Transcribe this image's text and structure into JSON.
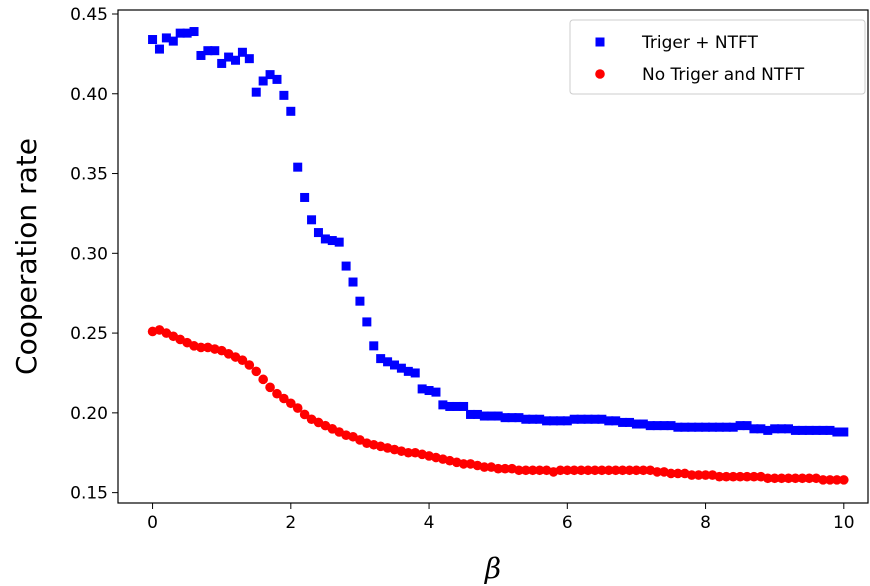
{
  "chart_data": {
    "type": "scatter",
    "xlabel": "β",
    "ylabel": "Cooperation rate",
    "xlim": [
      -0.5,
      10.35
    ],
    "ylim": [
      0.1435,
      0.4525
    ],
    "xticks": [
      0,
      2,
      4,
      6,
      8,
      10
    ],
    "yticks": [
      0.15,
      0.2,
      0.25,
      0.3,
      0.35,
      0.4,
      0.45
    ],
    "xtick_labels": [
      "0",
      "2",
      "4",
      "6",
      "8",
      "10"
    ],
    "ytick_labels": [
      "0.15",
      "0.20",
      "0.25",
      "0.30",
      "0.35",
      "0.40",
      "0.45"
    ],
    "grid": false,
    "legend_position": "top-right",
    "series": [
      {
        "name": "Triger + NTFT",
        "marker": "square",
        "color": "#0000ff",
        "x": [
          0.0,
          0.1,
          0.2,
          0.3,
          0.4,
          0.5,
          0.6,
          0.7,
          0.8,
          0.9,
          1.0,
          1.1,
          1.2,
          1.3,
          1.4,
          1.5,
          1.6,
          1.7,
          1.8,
          1.9,
          2.0,
          2.1,
          2.2,
          2.3,
          2.4,
          2.5,
          2.6,
          2.7,
          2.8,
          2.9,
          3.0,
          3.1,
          3.2,
          3.3,
          3.4,
          3.5,
          3.6,
          3.7,
          3.8,
          3.9,
          4.0,
          4.1,
          4.2,
          4.3,
          4.4,
          4.5,
          4.6,
          4.7,
          4.8,
          4.9,
          5.0,
          5.1,
          5.2,
          5.3,
          5.4,
          5.5,
          5.6,
          5.7,
          5.8,
          5.9,
          6.0,
          6.1,
          6.2,
          6.3,
          6.4,
          6.5,
          6.6,
          6.7,
          6.8,
          6.9,
          7.0,
          7.1,
          7.2,
          7.3,
          7.4,
          7.5,
          7.6,
          7.7,
          7.8,
          7.9,
          8.0,
          8.1,
          8.2,
          8.3,
          8.4,
          8.5,
          8.6,
          8.7,
          8.8,
          8.9,
          9.0,
          9.1,
          9.2,
          9.3,
          9.4,
          9.5,
          9.6,
          9.7,
          9.8,
          9.9,
          10.0
        ],
        "y": [
          0.434,
          0.428,
          0.435,
          0.433,
          0.438,
          0.438,
          0.439,
          0.424,
          0.427,
          0.427,
          0.419,
          0.423,
          0.421,
          0.426,
          0.422,
          0.401,
          0.408,
          0.412,
          0.409,
          0.399,
          0.389,
          0.354,
          0.335,
          0.321,
          0.313,
          0.309,
          0.308,
          0.307,
          0.292,
          0.282,
          0.27,
          0.257,
          0.242,
          0.234,
          0.232,
          0.23,
          0.228,
          0.226,
          0.225,
          0.215,
          0.214,
          0.213,
          0.205,
          0.204,
          0.204,
          0.204,
          0.199,
          0.199,
          0.198,
          0.198,
          0.198,
          0.197,
          0.197,
          0.197,
          0.196,
          0.196,
          0.196,
          0.195,
          0.195,
          0.195,
          0.195,
          0.196,
          0.196,
          0.196,
          0.196,
          0.196,
          0.195,
          0.195,
          0.194,
          0.194,
          0.193,
          0.193,
          0.192,
          0.192,
          0.192,
          0.192,
          0.191,
          0.191,
          0.191,
          0.191,
          0.191,
          0.191,
          0.191,
          0.191,
          0.191,
          0.192,
          0.192,
          0.19,
          0.19,
          0.189,
          0.19,
          0.19,
          0.19,
          0.189,
          0.189,
          0.189,
          0.189,
          0.189,
          0.189,
          0.188,
          0.188
        ]
      },
      {
        "name": "No Triger and NTFT",
        "marker": "circle",
        "color": "#ff0000",
        "x": [
          0.0,
          0.1,
          0.2,
          0.3,
          0.4,
          0.5,
          0.6,
          0.7,
          0.8,
          0.9,
          1.0,
          1.1,
          1.2,
          1.3,
          1.4,
          1.5,
          1.6,
          1.7,
          1.8,
          1.9,
          2.0,
          2.1,
          2.2,
          2.3,
          2.4,
          2.5,
          2.6,
          2.7,
          2.8,
          2.9,
          3.0,
          3.1,
          3.2,
          3.3,
          3.4,
          3.5,
          3.6,
          3.7,
          3.8,
          3.9,
          4.0,
          4.1,
          4.2,
          4.3,
          4.4,
          4.5,
          4.6,
          4.7,
          4.8,
          4.9,
          5.0,
          5.1,
          5.2,
          5.3,
          5.4,
          5.5,
          5.6,
          5.7,
          5.8,
          5.9,
          6.0,
          6.1,
          6.2,
          6.3,
          6.4,
          6.5,
          6.6,
          6.7,
          6.8,
          6.9,
          7.0,
          7.1,
          7.2,
          7.3,
          7.4,
          7.5,
          7.6,
          7.7,
          7.8,
          7.9,
          8.0,
          8.1,
          8.2,
          8.3,
          8.4,
          8.5,
          8.6,
          8.7,
          8.8,
          8.9,
          9.0,
          9.1,
          9.2,
          9.3,
          9.4,
          9.5,
          9.6,
          9.7,
          9.8,
          9.9,
          10.0
        ],
        "y": [
          0.251,
          0.252,
          0.25,
          0.248,
          0.246,
          0.244,
          0.242,
          0.241,
          0.241,
          0.24,
          0.239,
          0.237,
          0.235,
          0.233,
          0.23,
          0.226,
          0.221,
          0.216,
          0.212,
          0.209,
          0.206,
          0.203,
          0.199,
          0.196,
          0.194,
          0.192,
          0.19,
          0.188,
          0.186,
          0.185,
          0.183,
          0.181,
          0.18,
          0.179,
          0.178,
          0.177,
          0.176,
          0.175,
          0.175,
          0.174,
          0.173,
          0.172,
          0.171,
          0.17,
          0.169,
          0.168,
          0.168,
          0.167,
          0.166,
          0.166,
          0.165,
          0.165,
          0.165,
          0.164,
          0.164,
          0.164,
          0.164,
          0.164,
          0.163,
          0.164,
          0.164,
          0.164,
          0.164,
          0.164,
          0.164,
          0.164,
          0.164,
          0.164,
          0.164,
          0.164,
          0.164,
          0.164,
          0.164,
          0.163,
          0.163,
          0.162,
          0.162,
          0.162,
          0.161,
          0.161,
          0.161,
          0.161,
          0.16,
          0.16,
          0.16,
          0.16,
          0.16,
          0.16,
          0.16,
          0.159,
          0.159,
          0.159,
          0.159,
          0.159,
          0.159,
          0.159,
          0.159,
          0.158,
          0.158,
          0.158,
          0.158
        ]
      }
    ]
  }
}
